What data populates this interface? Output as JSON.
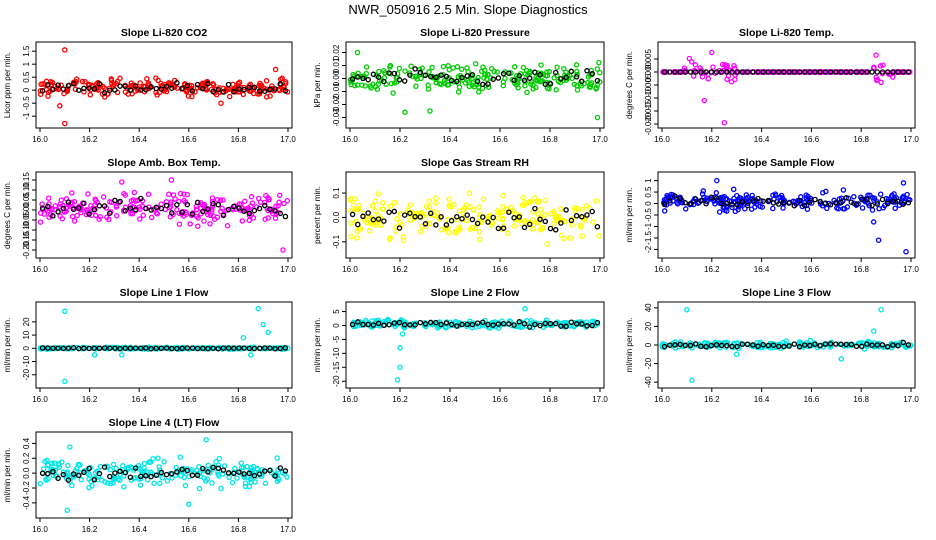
{
  "page_title": "NWR_050916  2.5 Min. Slope Diagnostics",
  "colors": {
    "black": "#000000"
  },
  "chart_data": [
    {
      "type": "scatter",
      "title": "Slope Li-820 CO2",
      "ylabel": "Licor ppm per min.",
      "xlim": [
        16.0,
        17.0
      ],
      "ylim": [
        -1.3,
        1.7
      ],
      "xticks": [
        "16.0",
        "16.2",
        "16.4",
        "16.6",
        "16.8",
        "17.0"
      ],
      "yticks": [
        -1.0,
        -0.5,
        0.0,
        0.5,
        1.0,
        1.5
      ],
      "ytick_labels": [
        "-1",
        "-0.5",
        "0",
        "0.5",
        "1",
        "1.5"
      ],
      "color": "#ff0000",
      "center": 0.1,
      "spread": 0.22,
      "outliers": [
        [
          16.1,
          1.55
        ],
        [
          16.1,
          -1.28
        ],
        [
          16.08,
          -0.6
        ],
        [
          16.95,
          0.8
        ],
        [
          16.73,
          -0.5
        ]
      ]
    },
    {
      "type": "scatter",
      "title": "Slope Li-820 Pressure",
      "ylabel": "kPa per min.",
      "xlim": [
        16.0,
        17.0
      ],
      "ylim": [
        -0.035,
        0.025
      ],
      "xticks": [
        "16.0",
        "16.2",
        "16.4",
        "16.6",
        "16.8",
        "17.0"
      ],
      "yticks": [
        -0.03,
        -0.02,
        -0.01,
        0.0,
        0.01,
        0.02
      ],
      "ytick_labels": [
        "-0.03",
        "-0.02",
        "-0.01",
        "0.00",
        "0.01",
        "0.02"
      ],
      "color": "#00cc00",
      "center": 0.0,
      "spread": 0.007,
      "outliers": [
        [
          16.99,
          -0.03
        ],
        [
          16.22,
          -0.026
        ],
        [
          16.03,
          0.02
        ],
        [
          16.32,
          -0.025
        ]
      ]
    },
    {
      "type": "scatter",
      "title": "Slope Li-820 Temp.",
      "ylabel": "degrees C per min.",
      "xlim": [
        16.0,
        17.0
      ],
      "ylim": [
        -0.02,
        0.01
      ],
      "xticks": [
        "16.0",
        "16.2",
        "16.4",
        "16.6",
        "16.8",
        "17.0"
      ],
      "yticks": [
        -0.02,
        -0.015,
        -0.01,
        -0.005,
        0.0,
        0.005
      ],
      "ytick_labels": [
        "-0.020",
        "-0.015",
        "-0.010",
        "-0.005",
        "0.000",
        "0.005"
      ],
      "color": "#ff00ff",
      "center": 0.0,
      "spread": 0.0,
      "outliers": [
        [
          16.2,
          0.0075
        ],
        [
          16.25,
          -0.0195
        ],
        [
          16.17,
          -0.011
        ],
        [
          16.86,
          0.0065
        ],
        [
          16.88,
          -0.004
        ]
      ]
    },
    {
      "type": "scatter",
      "title": "Slope Amb. Box Temp.",
      "ylabel": "degrees C per min.",
      "xlim": [
        16.0,
        17.0
      ],
      "ylim": [
        -0.22,
        0.17
      ],
      "xticks": [
        "16.0",
        "16.2",
        "16.4",
        "16.6",
        "16.8",
        "17.0"
      ],
      "yticks": [
        -0.2,
        -0.15,
        -0.1,
        -0.05,
        0.0,
        0.05,
        0.1,
        0.15
      ],
      "ytick_labels": [
        "-0.20",
        "-0.15",
        "-0.10",
        "-0.05",
        "0.00",
        "0.05",
        "0.10",
        "0.15"
      ],
      "color": "#ff00ff",
      "center": 0.01,
      "spread": 0.05,
      "outliers": [
        [
          16.98,
          -0.2
        ],
        [
          16.53,
          0.15
        ],
        [
          16.33,
          0.14
        ]
      ]
    },
    {
      "type": "scatter",
      "title": "Slope Gas Stream RH",
      "ylabel": "percent per min.",
      "xlim": [
        16.0,
        17.0
      ],
      "ylim": [
        -0.15,
        0.17
      ],
      "xticks": [
        "16.0",
        "16.2",
        "16.4",
        "16.6",
        "16.8",
        "17.0"
      ],
      "yticks": [
        -0.1,
        0.0,
        0.1
      ],
      "ytick_labels": [
        "-0.1",
        "0.0",
        "0.1"
      ],
      "color": "#ffff00",
      "center": 0.0,
      "spread": 0.06,
      "outliers": []
    },
    {
      "type": "scatter",
      "title": "Slope Sample Flow",
      "ylabel": "ml/min per min.",
      "xlim": [
        16.0,
        17.0
      ],
      "ylim": [
        -2.2,
        1.2
      ],
      "xticks": [
        "16.0",
        "16.2",
        "16.4",
        "16.6",
        "16.8",
        "17.0"
      ],
      "yticks": [
        -2.0,
        -1.5,
        -1.0,
        -0.5,
        0.0,
        0.5,
        1.0
      ],
      "ytick_labels": [
        "-2",
        "-1.5",
        "-1",
        "-0.5",
        "0",
        "0.5",
        "1"
      ],
      "color": "#0000ff",
      "center": 0.1,
      "spread": 0.25,
      "outliers": [
        [
          16.98,
          -2.1
        ],
        [
          16.97,
          0.9
        ],
        [
          16.22,
          1.0
        ],
        [
          16.85,
          -0.8
        ],
        [
          16.87,
          -1.6
        ]
      ]
    },
    {
      "type": "scatter",
      "title": "Slope Line 1 Flow",
      "ylabel": "ml/min per min.",
      "xlim": [
        16.0,
        17.0
      ],
      "ylim": [
        -27,
        32
      ],
      "xticks": [
        "16.0",
        "16.2",
        "16.4",
        "16.6",
        "16.8",
        "17.0"
      ],
      "yticks": [
        -20,
        -10,
        0,
        10,
        20
      ],
      "ytick_labels": [
        "-20",
        "-10",
        "0",
        "10",
        "20"
      ],
      "color": "#00e5e5",
      "center": 0.0,
      "spread": 0.5,
      "outliers": [
        [
          16.1,
          28
        ],
        [
          16.1,
          -25
        ],
        [
          16.22,
          -5
        ],
        [
          16.88,
          30
        ],
        [
          16.9,
          18
        ],
        [
          16.92,
          12
        ],
        [
          16.82,
          8
        ],
        [
          16.85,
          -5
        ],
        [
          16.33,
          -5
        ]
      ]
    },
    {
      "type": "scatter",
      "title": "Slope Line 2 Flow",
      "ylabel": "ml/min per min.",
      "xlim": [
        16.0,
        17.0
      ],
      "ylim": [
        -21,
        7
      ],
      "xticks": [
        "16.0",
        "16.2",
        "16.4",
        "16.6",
        "16.8",
        "17.0"
      ],
      "yticks": [
        -20,
        -15,
        -10,
        -5,
        0,
        5
      ],
      "ytick_labels": [
        "-20",
        "-15",
        "-10",
        "-5",
        "0",
        "5"
      ],
      "color": "#00e5e5",
      "center": 0.5,
      "spread": 1.0,
      "outliers": [
        [
          16.19,
          -19.5
        ],
        [
          16.2,
          -8
        ],
        [
          16.21,
          -3
        ],
        [
          16.7,
          6
        ],
        [
          16.2,
          -15
        ]
      ]
    },
    {
      "type": "scatter",
      "title": "Slope Line 3 Flow",
      "ylabel": "ml/min per min.",
      "xlim": [
        16.0,
        17.0
      ],
      "ylim": [
        -42,
        42
      ],
      "xticks": [
        "16.0",
        "16.2",
        "16.4",
        "16.6",
        "16.8",
        "17.0"
      ],
      "yticks": [
        -40,
        -20,
        0,
        20,
        40
      ],
      "ytick_labels": [
        "-40",
        "-20",
        "0",
        "20",
        "40"
      ],
      "color": "#00e5e5",
      "center": 0.0,
      "spread": 2.5,
      "outliers": [
        [
          16.1,
          38
        ],
        [
          16.12,
          -38
        ],
        [
          16.88,
          38
        ],
        [
          16.85,
          15
        ],
        [
          16.72,
          -15
        ],
        [
          16.3,
          -10
        ]
      ]
    },
    {
      "type": "scatter",
      "title": "Slope Line 4 (LT) Flow",
      "ylabel": "ml/min per min.",
      "xlim": [
        16.0,
        17.0
      ],
      "ylim": [
        -0.55,
        0.5
      ],
      "xticks": [
        "16.0",
        "16.2",
        "16.4",
        "16.6",
        "16.8",
        "17.0"
      ],
      "yticks": [
        -0.4,
        -0.2,
        0.0,
        0.2,
        0.4
      ],
      "ytick_labels": [
        "-0.4",
        "-0.2",
        "0.0",
        "0.2",
        "0.4"
      ],
      "color": "#00e5e5",
      "center": 0.0,
      "spread": 0.13,
      "outliers": [
        [
          16.11,
          -0.5
        ],
        [
          16.67,
          0.45
        ],
        [
          16.12,
          0.35
        ],
        [
          16.6,
          -0.42
        ]
      ]
    }
  ]
}
